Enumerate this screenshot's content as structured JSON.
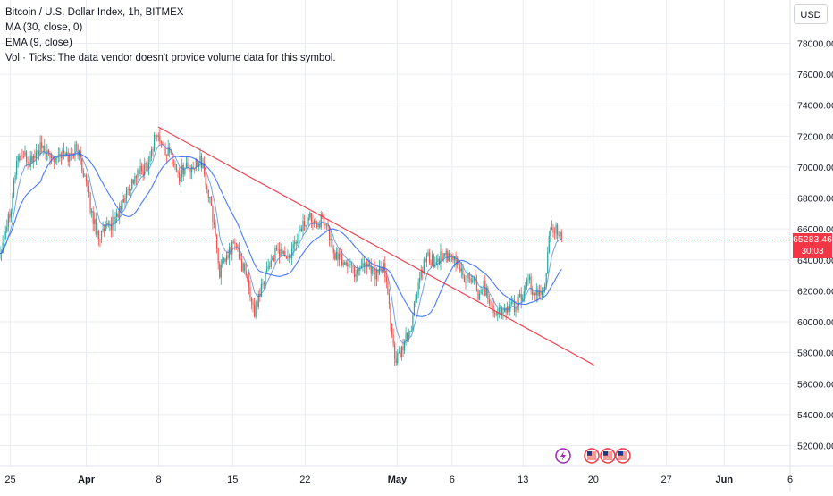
{
  "header": {
    "title": "Bitcoin / U.S. Dollar Index, 1h, BITMEX",
    "ma": "MA (30, close, 0)",
    "ema": "EMA (9, close)",
    "vol": "Vol · Ticks: The data vendor doesn't provide volume data for this symbol."
  },
  "currency_button": "USD",
  "last_price": {
    "value": "65283.46",
    "countdown": "30:03"
  },
  "colors": {
    "up": "#26a69a",
    "down": "#ef5350",
    "ma_line": "#2962ff",
    "ema_line": "#3a7bd5",
    "trendline": "#f23645",
    "grid": "#e9ecf1",
    "price_tag": "#f23645"
  },
  "event_icons": [
    "lightning-icon",
    "us-flag-icon",
    "us-flag-icon",
    "us-flag-icon"
  ],
  "chart_data": {
    "type": "candlestick",
    "y_ticks": [
      "52000.00",
      "54000.00",
      "56000.00",
      "58000.00",
      "60000.00",
      "62000.00",
      "64000.00",
      "66000.00",
      "68000.00",
      "70000.00",
      "72000.00",
      "74000.00",
      "76000.00",
      "78000.00"
    ],
    "x_ticks": [
      "25",
      "Apr",
      "8",
      "15",
      "22",
      "May",
      "6",
      "13",
      "20",
      "27",
      "Jun",
      "6"
    ],
    "ylim": [
      50700,
      80800
    ],
    "last_price": 65283.46,
    "price_path": [
      {
        "x": 0,
        "y": 64500
      },
      {
        "x": 1.5,
        "y": 67500
      },
      {
        "x": 2.3,
        "y": 70500
      },
      {
        "x": 3.0,
        "y": 70800
      },
      {
        "x": 4.0,
        "y": 70300
      },
      {
        "x": 5.5,
        "y": 71200
      },
      {
        "x": 6.7,
        "y": 70600
      },
      {
        "x": 8.0,
        "y": 70900
      },
      {
        "x": 9.5,
        "y": 70700
      },
      {
        "x": 10.5,
        "y": 71300
      },
      {
        "x": 11.5,
        "y": 69600
      },
      {
        "x": 12.6,
        "y": 66800
      },
      {
        "x": 13.5,
        "y": 65500
      },
      {
        "x": 14.5,
        "y": 65900
      },
      {
        "x": 15.5,
        "y": 66500
      },
      {
        "x": 16.5,
        "y": 67300
      },
      {
        "x": 17.5,
        "y": 68600
      },
      {
        "x": 18.5,
        "y": 69400
      },
      {
        "x": 19.5,
        "y": 69800
      },
      {
        "x": 20.5,
        "y": 70600
      },
      {
        "x": 21.3,
        "y": 72300
      },
      {
        "x": 22.3,
        "y": 71200
      },
      {
        "x": 23.5,
        "y": 70700
      },
      {
        "x": 24.5,
        "y": 69300
      },
      {
        "x": 25.3,
        "y": 70200
      },
      {
        "x": 26.3,
        "y": 69600
      },
      {
        "x": 27.3,
        "y": 70800
      },
      {
        "x": 28.5,
        "y": 68200
      },
      {
        "x": 29.3,
        "y": 66200
      },
      {
        "x": 30.0,
        "y": 63200
      },
      {
        "x": 31.0,
        "y": 64100
      },
      {
        "x": 32.0,
        "y": 65200
      },
      {
        "x": 33.0,
        "y": 63800
      },
      {
        "x": 34.0,
        "y": 62200
      },
      {
        "x": 34.8,
        "y": 60600
      },
      {
        "x": 35.5,
        "y": 62000
      },
      {
        "x": 36.5,
        "y": 63500
      },
      {
        "x": 37.5,
        "y": 64300
      },
      {
        "x": 38.5,
        "y": 64600
      },
      {
        "x": 39.5,
        "y": 63900
      },
      {
        "x": 40.5,
        "y": 65300
      },
      {
        "x": 41.3,
        "y": 66200
      },
      {
        "x": 42.5,
        "y": 66800
      },
      {
        "x": 43.5,
        "y": 66500
      },
      {
        "x": 44.5,
        "y": 66600
      },
      {
        "x": 45.5,
        "y": 64500
      },
      {
        "x": 46.5,
        "y": 64000
      },
      {
        "x": 47.5,
        "y": 63800
      },
      {
        "x": 48.5,
        "y": 63200
      },
      {
        "x": 49.5,
        "y": 63800
      },
      {
        "x": 50.5,
        "y": 63700
      },
      {
        "x": 51.5,
        "y": 63000
      },
      {
        "x": 52.5,
        "y": 63400
      },
      {
        "x": 53.3,
        "y": 60700
      },
      {
        "x": 54.0,
        "y": 57300
      },
      {
        "x": 54.8,
        "y": 57900
      },
      {
        "x": 55.5,
        "y": 58900
      },
      {
        "x": 56.2,
        "y": 59600
      },
      {
        "x": 57.0,
        "y": 62000
      },
      {
        "x": 57.8,
        "y": 63500
      },
      {
        "x": 58.5,
        "y": 64100
      },
      {
        "x": 59.5,
        "y": 63800
      },
      {
        "x": 60.5,
        "y": 64400
      },
      {
        "x": 61.3,
        "y": 64000
      },
      {
        "x": 62.5,
        "y": 63900
      },
      {
        "x": 63.5,
        "y": 62800
      },
      {
        "x": 64.5,
        "y": 62900
      },
      {
        "x": 65.3,
        "y": 61800
      },
      {
        "x": 66.0,
        "y": 62400
      },
      {
        "x": 66.8,
        "y": 61600
      },
      {
        "x": 67.5,
        "y": 60800
      },
      {
        "x": 68.5,
        "y": 60600
      },
      {
        "x": 69.5,
        "y": 60900
      },
      {
        "x": 70.5,
        "y": 61000
      },
      {
        "x": 71.5,
        "y": 61800
      },
      {
        "x": 72.3,
        "y": 62600
      },
      {
        "x": 73.0,
        "y": 61900
      },
      {
        "x": 73.8,
        "y": 61600
      },
      {
        "x": 74.5,
        "y": 62300
      },
      {
        "x": 75.0,
        "y": 65800
      },
      {
        "x": 75.6,
        "y": 66200
      },
      {
        "x": 76.3,
        "y": 65600
      },
      {
        "x": 76.8,
        "y": 65283
      }
    ],
    "trendline": {
      "x0": 21.6,
      "y0": 72600,
      "x1": 81.2,
      "y1": 57200
    },
    "x_axis": {
      "x_min": 0,
      "x_max": 108,
      "tick_positions": [
        1.4,
        11.8,
        21.7,
        31.8,
        41.7,
        54.3,
        61.8,
        71.5,
        81.1,
        91.1,
        99.0,
        108.0
      ]
    }
  }
}
